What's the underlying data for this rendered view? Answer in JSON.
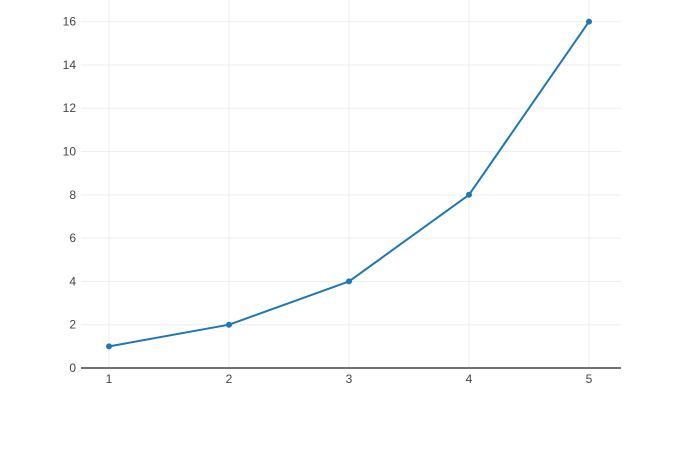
{
  "page": {
    "background_color": "#ffffff"
  },
  "chart_data": {
    "type": "line",
    "mode": "lines+markers",
    "title": "",
    "xlabel": "",
    "ylabel": "",
    "x": [
      1,
      2,
      3,
      4,
      5
    ],
    "series": [
      {
        "name": "",
        "values": [
          1,
          2,
          4,
          8,
          16
        ]
      }
    ],
    "x_ticks": [
      1,
      2,
      3,
      4,
      5
    ],
    "y_ticks": [
      0,
      2,
      4,
      6,
      8,
      10,
      12,
      14,
      16
    ],
    "xlim": [
      0.767,
      5.267
    ],
    "ylim": [
      0,
      17
    ],
    "grid": true,
    "legend": false,
    "colors": {
      "line": "#1f77b4",
      "marker": "#1f77b4",
      "grid": "#eeeeee",
      "zeroline": "#444444",
      "tick_label": "#444444",
      "plot_background": "#ffffff",
      "paper_background": "#ffffff"
    },
    "line_width": 2,
    "marker_size": 6
  }
}
